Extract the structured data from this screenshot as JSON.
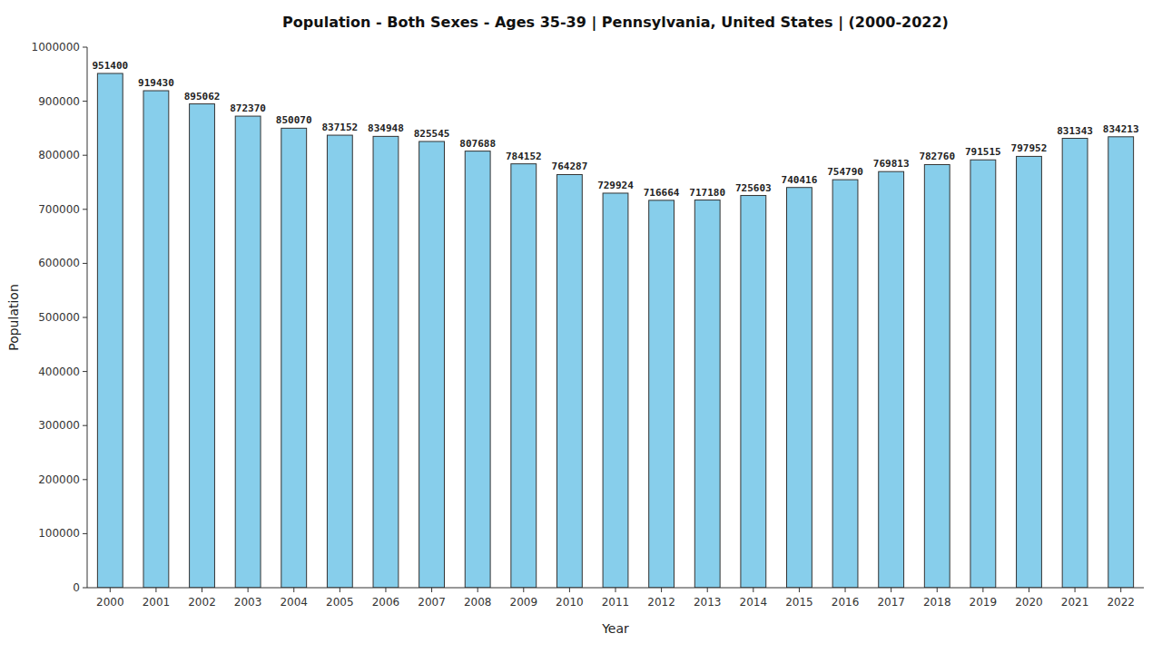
{
  "chart_data": {
    "type": "bar",
    "title": "Population - Both Sexes - Ages 35-39 | Pennsylvania, United States |  (2000-2022)",
    "xlabel": "Year",
    "ylabel": "Population",
    "categories": [
      "2000",
      "2001",
      "2002",
      "2003",
      "2004",
      "2005",
      "2006",
      "2007",
      "2008",
      "2009",
      "2010",
      "2011",
      "2012",
      "2013",
      "2014",
      "2015",
      "2016",
      "2017",
      "2018",
      "2019",
      "2020",
      "2021",
      "2022"
    ],
    "values": [
      951400,
      919430,
      895062,
      872370,
      850070,
      837152,
      834948,
      825545,
      807688,
      784152,
      764287,
      729924,
      716664,
      717180,
      725603,
      740416,
      754790,
      769813,
      782760,
      791515,
      797952,
      831343,
      834213
    ],
    "color": "#87CEEB",
    "ylim": [
      0,
      1000000
    ],
    "yticks": [
      0,
      100000,
      200000,
      300000,
      400000,
      500000,
      600000,
      700000,
      800000,
      900000,
      1000000
    ],
    "grid": false,
    "data_labels": true
  }
}
